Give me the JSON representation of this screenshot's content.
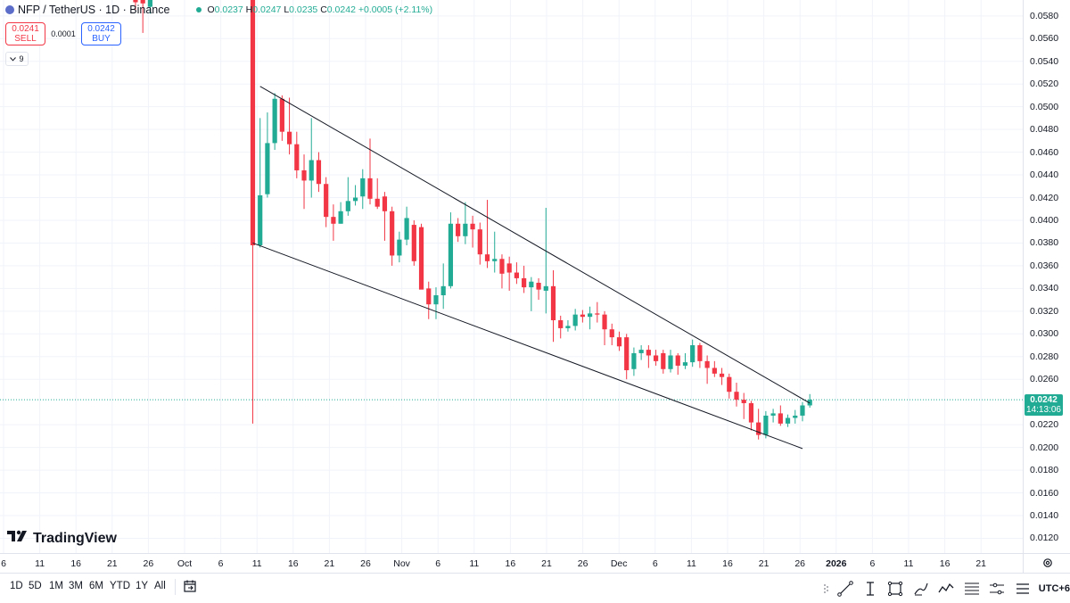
{
  "symbol": {
    "title": "NFP / TetherUS · 1D · Binance",
    "ohlc": {
      "o_label": "O",
      "o": "0.0237",
      "h_label": "H",
      "h": "0.0247",
      "l_label": "L",
      "l": "0.0235",
      "c_label": "C",
      "c": "0.0242",
      "change": "+0.0005 (+2.11%)"
    }
  },
  "trade": {
    "sell_price": "0.0241",
    "sell_label": "SELL",
    "spread": "0.0001",
    "buy_price": "0.0242",
    "buy_label": "BUY"
  },
  "indicators_toggle": {
    "count": "9",
    "icon": "chevron-down-icon"
  },
  "current_price_label": {
    "price": "0.0242",
    "countdown": "14:13:06",
    "color": "#22ab94"
  },
  "watermark": {
    "text": "TradingView",
    "icon": "tradingview-logo"
  },
  "colors": {
    "up": "#22ab94",
    "down": "#f23645",
    "trendline": "#131722",
    "grid": "#f0f3fa"
  },
  "chart_data": {
    "type": "candlestick",
    "title": "NFP / TetherUS · 1D · Binance",
    "y_ticks": [
      "0.0580",
      "0.0560",
      "0.0540",
      "0.0520",
      "0.0500",
      "0.0480",
      "0.0460",
      "0.0440",
      "0.0420",
      "0.0400",
      "0.0380",
      "0.0360",
      "0.0340",
      "0.0320",
      "0.0300",
      "0.0280",
      "0.0260",
      "0.0220",
      "0.0200",
      "0.0180",
      "0.0160",
      "0.0140",
      "0.0120"
    ],
    "ylim": [
      0.0107,
      0.0594
    ],
    "x_ticks": [
      "6",
      "11",
      "16",
      "21",
      "26",
      "Oct",
      "6",
      "11",
      "16",
      "21",
      "26",
      "Nov",
      "6",
      "11",
      "16",
      "21",
      "26",
      "Dec",
      "6",
      "11",
      "16",
      "21",
      "26",
      "2026",
      "6",
      "11",
      "16",
      "21"
    ],
    "grid": true,
    "candles": [
      {
        "x": "Sep 24",
        "o": 0.0595,
        "h": 0.06,
        "l": 0.0585,
        "c": 0.0592
      },
      {
        "x": "Sep 25",
        "o": 0.0598,
        "h": 0.0601,
        "l": 0.0565,
        "c": 0.0591
      },
      {
        "x": "Sep 26",
        "o": 0.0588,
        "h": 0.0597,
        "l": 0.0582,
        "c": 0.0594
      },
      {
        "x": "Oct 10",
        "o": 0.06,
        "h": 0.06,
        "l": 0.0221,
        "c": 0.0378
      },
      {
        "x": "Oct 11",
        "o": 0.0378,
        "h": 0.049,
        "l": 0.0376,
        "c": 0.0422
      },
      {
        "x": "Oct 12",
        "o": 0.0423,
        "h": 0.0495,
        "l": 0.042,
        "c": 0.0468
      },
      {
        "x": "Oct 13",
        "o": 0.0468,
        "h": 0.0512,
        "l": 0.0462,
        "c": 0.0507
      },
      {
        "x": "Oct 14",
        "o": 0.0507,
        "h": 0.051,
        "l": 0.047,
        "c": 0.0478
      },
      {
        "x": "Oct 15",
        "o": 0.0478,
        "h": 0.0508,
        "l": 0.0458,
        "c": 0.0467
      },
      {
        "x": "Oct 16",
        "o": 0.0467,
        "h": 0.0478,
        "l": 0.0437,
        "c": 0.0444
      },
      {
        "x": "Oct 17",
        "o": 0.0444,
        "h": 0.0458,
        "l": 0.041,
        "c": 0.0435
      },
      {
        "x": "Oct 18",
        "o": 0.0435,
        "h": 0.049,
        "l": 0.042,
        "c": 0.0453
      },
      {
        "x": "Oct 19",
        "o": 0.0453,
        "h": 0.046,
        "l": 0.0425,
        "c": 0.0432
      },
      {
        "x": "Oct 20",
        "o": 0.0432,
        "h": 0.0438,
        "l": 0.0394,
        "c": 0.0403
      },
      {
        "x": "Oct 21",
        "o": 0.0403,
        "h": 0.0414,
        "l": 0.0382,
        "c": 0.0397
      },
      {
        "x": "Oct 22",
        "o": 0.0397,
        "h": 0.0416,
        "l": 0.0397,
        "c": 0.0408
      },
      {
        "x": "Oct 23",
        "o": 0.0408,
        "h": 0.0438,
        "l": 0.0404,
        "c": 0.0417
      },
      {
        "x": "Oct 24",
        "o": 0.0417,
        "h": 0.0431,
        "l": 0.0413,
        "c": 0.042
      },
      {
        "x": "Oct 25",
        "o": 0.0421,
        "h": 0.0445,
        "l": 0.041,
        "c": 0.0437
      },
      {
        "x": "Oct 26",
        "o": 0.0437,
        "h": 0.0472,
        "l": 0.0414,
        "c": 0.0419
      },
      {
        "x": "Oct 27",
        "o": 0.0419,
        "h": 0.0437,
        "l": 0.041,
        "c": 0.0412
      },
      {
        "x": "Oct 28",
        "o": 0.0421,
        "h": 0.0425,
        "l": 0.0382,
        "c": 0.0408
      },
      {
        "x": "Oct 29",
        "o": 0.0408,
        "h": 0.0412,
        "l": 0.036,
        "c": 0.0369
      },
      {
        "x": "Oct 30",
        "o": 0.0369,
        "h": 0.039,
        "l": 0.0363,
        "c": 0.0383
      },
      {
        "x": "Oct 31",
        "o": 0.0383,
        "h": 0.0412,
        "l": 0.0378,
        "c": 0.0402
      },
      {
        "x": "Nov 1",
        "o": 0.0396,
        "h": 0.04,
        "l": 0.036,
        "c": 0.0364
      },
      {
        "x": "Nov 2",
        "o": 0.0394,
        "h": 0.0397,
        "l": 0.0341,
        "c": 0.0339
      },
      {
        "x": "Nov 3",
        "o": 0.034,
        "h": 0.0346,
        "l": 0.0313,
        "c": 0.0326
      },
      {
        "x": "Nov 4",
        "o": 0.0326,
        "h": 0.0341,
        "l": 0.0313,
        "c": 0.0334
      },
      {
        "x": "Nov 5",
        "o": 0.0334,
        "h": 0.0362,
        "l": 0.0322,
        "c": 0.0342
      },
      {
        "x": "Nov 6",
        "o": 0.0342,
        "h": 0.0407,
        "l": 0.034,
        "c": 0.0397
      },
      {
        "x": "Nov 7",
        "o": 0.0397,
        "h": 0.0402,
        "l": 0.0381,
        "c": 0.0386
      },
      {
        "x": "Nov 8",
        "o": 0.0386,
        "h": 0.0416,
        "l": 0.0379,
        "c": 0.0397
      },
      {
        "x": "Nov 9",
        "o": 0.0397,
        "h": 0.0404,
        "l": 0.0376,
        "c": 0.0392
      },
      {
        "x": "Nov 10",
        "o": 0.0392,
        "h": 0.0398,
        "l": 0.0361,
        "c": 0.037
      },
      {
        "x": "Nov 11",
        "o": 0.037,
        "h": 0.0418,
        "l": 0.0358,
        "c": 0.0364
      },
      {
        "x": "Nov 12",
        "o": 0.0364,
        "h": 0.039,
        "l": 0.0354,
        "c": 0.0366
      },
      {
        "x": "Nov 13",
        "o": 0.0366,
        "h": 0.037,
        "l": 0.034,
        "c": 0.0353
      },
      {
        "x": "Nov 14",
        "o": 0.0362,
        "h": 0.0368,
        "l": 0.0338,
        "c": 0.0354
      },
      {
        "x": "Nov 15",
        "o": 0.0354,
        "h": 0.0363,
        "l": 0.0344,
        "c": 0.0349
      },
      {
        "x": "Nov 16",
        "o": 0.0349,
        "h": 0.036,
        "l": 0.0336,
        "c": 0.0341
      },
      {
        "x": "Nov 17",
        "o": 0.0341,
        "h": 0.035,
        "l": 0.032,
        "c": 0.0346
      },
      {
        "x": "Nov 18",
        "o": 0.0345,
        "h": 0.0349,
        "l": 0.033,
        "c": 0.0339
      },
      {
        "x": "Nov 19",
        "o": 0.0338,
        "h": 0.0411,
        "l": 0.0318,
        "c": 0.0342
      },
      {
        "x": "Nov 20",
        "o": 0.0342,
        "h": 0.0356,
        "l": 0.0293,
        "c": 0.0312
      },
      {
        "x": "Nov 21",
        "o": 0.0312,
        "h": 0.0316,
        "l": 0.0296,
        "c": 0.0305
      },
      {
        "x": "Nov 22",
        "o": 0.0305,
        "h": 0.0312,
        "l": 0.0302,
        "c": 0.0307
      },
      {
        "x": "Nov 23",
        "o": 0.0307,
        "h": 0.0322,
        "l": 0.0303,
        "c": 0.0317
      },
      {
        "x": "Nov 24",
        "o": 0.0317,
        "h": 0.0321,
        "l": 0.031,
        "c": 0.0315
      },
      {
        "x": "Nov 25",
        "o": 0.0315,
        "h": 0.0324,
        "l": 0.0304,
        "c": 0.0318
      },
      {
        "x": "Nov 26",
        "o": 0.0318,
        "h": 0.0328,
        "l": 0.031,
        "c": 0.0317
      },
      {
        "x": "Nov 27",
        "o": 0.0317,
        "h": 0.032,
        "l": 0.029,
        "c": 0.0304
      },
      {
        "x": "Nov 28",
        "o": 0.0304,
        "h": 0.0309,
        "l": 0.029,
        "c": 0.0297
      },
      {
        "x": "Nov 29",
        "o": 0.0297,
        "h": 0.0302,
        "l": 0.0285,
        "c": 0.0289
      },
      {
        "x": "Nov 30",
        "o": 0.0297,
        "h": 0.03,
        "l": 0.026,
        "c": 0.0268
      },
      {
        "x": "Dec 1",
        "o": 0.0269,
        "h": 0.0288,
        "l": 0.0263,
        "c": 0.0283
      },
      {
        "x": "Dec 2",
        "o": 0.0283,
        "h": 0.029,
        "l": 0.0277,
        "c": 0.0286
      },
      {
        "x": "Dec 3",
        "o": 0.0286,
        "h": 0.029,
        "l": 0.027,
        "c": 0.0281
      },
      {
        "x": "Dec 4",
        "o": 0.0281,
        "h": 0.0286,
        "l": 0.0272,
        "c": 0.0276
      },
      {
        "x": "Dec 5",
        "o": 0.0283,
        "h": 0.0286,
        "l": 0.0265,
        "c": 0.0269
      },
      {
        "x": "Dec 6",
        "o": 0.0269,
        "h": 0.0286,
        "l": 0.0266,
        "c": 0.0281
      },
      {
        "x": "Dec 7",
        "o": 0.0281,
        "h": 0.0283,
        "l": 0.0264,
        "c": 0.0272
      },
      {
        "x": "Dec 8",
        "o": 0.0272,
        "h": 0.0283,
        "l": 0.0269,
        "c": 0.0275
      },
      {
        "x": "Dec 9",
        "o": 0.0275,
        "h": 0.0295,
        "l": 0.0271,
        "c": 0.029
      },
      {
        "x": "Dec 10",
        "o": 0.029,
        "h": 0.0292,
        "l": 0.027,
        "c": 0.0276
      },
      {
        "x": "Dec 11",
        "o": 0.0276,
        "h": 0.0281,
        "l": 0.0256,
        "c": 0.027
      },
      {
        "x": "Dec 12",
        "o": 0.027,
        "h": 0.0276,
        "l": 0.0262,
        "c": 0.0265
      },
      {
        "x": "Dec 13",
        "o": 0.0265,
        "h": 0.027,
        "l": 0.0255,
        "c": 0.0262
      },
      {
        "x": "Dec 14",
        "o": 0.0262,
        "h": 0.0265,
        "l": 0.0243,
        "c": 0.0249
      },
      {
        "x": "Dec 15",
        "o": 0.0249,
        "h": 0.0257,
        "l": 0.0236,
        "c": 0.0242
      },
      {
        "x": "Dec 16",
        "o": 0.0242,
        "h": 0.0248,
        "l": 0.0225,
        "c": 0.0239
      },
      {
        "x": "Dec 17",
        "o": 0.0239,
        "h": 0.0241,
        "l": 0.0215,
        "c": 0.0222
      },
      {
        "x": "Dec 18",
        "o": 0.0222,
        "h": 0.0234,
        "l": 0.0207,
        "c": 0.0211
      },
      {
        "x": "Dec 19",
        "o": 0.0211,
        "h": 0.0232,
        "l": 0.0208,
        "c": 0.0228
      },
      {
        "x": "Dec 20",
        "o": 0.0228,
        "h": 0.0234,
        "l": 0.0222,
        "c": 0.023
      },
      {
        "x": "Dec 21",
        "o": 0.023,
        "h": 0.0237,
        "l": 0.0219,
        "c": 0.0221
      },
      {
        "x": "Dec 22",
        "o": 0.0221,
        "h": 0.0229,
        "l": 0.0218,
        "c": 0.0226
      },
      {
        "x": "Dec 23",
        "o": 0.0226,
        "h": 0.0233,
        "l": 0.0221,
        "c": 0.0228
      },
      {
        "x": "Dec 24",
        "o": 0.0228,
        "h": 0.024,
        "l": 0.0223,
        "c": 0.0237
      },
      {
        "x": "Dec 25",
        "o": 0.0237,
        "h": 0.0247,
        "l": 0.0235,
        "c": 0.0242
      }
    ],
    "trendlines": [
      {
        "name": "upper",
        "from": {
          "x": "Oct 11",
          "y": 0.0518
        },
        "to": {
          "x": "Dec 25",
          "y": 0.0239
        }
      },
      {
        "name": "lower",
        "from": {
          "x": "Oct 10",
          "y": 0.038
        },
        "to": {
          "x": "Dec 24",
          "y": 0.0199
        }
      }
    ],
    "last_price": 0.0242
  },
  "bottom_bar": {
    "ranges": [
      "1D",
      "5D",
      "1M",
      "3M",
      "6M",
      "YTD",
      "1Y",
      "All"
    ],
    "date_range_icon": "calendar-icon",
    "timezone": "UTC+6"
  },
  "drawing_tools": [
    "trend-line-icon",
    "text-cursor-icon",
    "rectangle-icon",
    "brush-icon",
    "pattern-icon",
    "fib-icon",
    "measure-icon",
    "menu-icon"
  ]
}
